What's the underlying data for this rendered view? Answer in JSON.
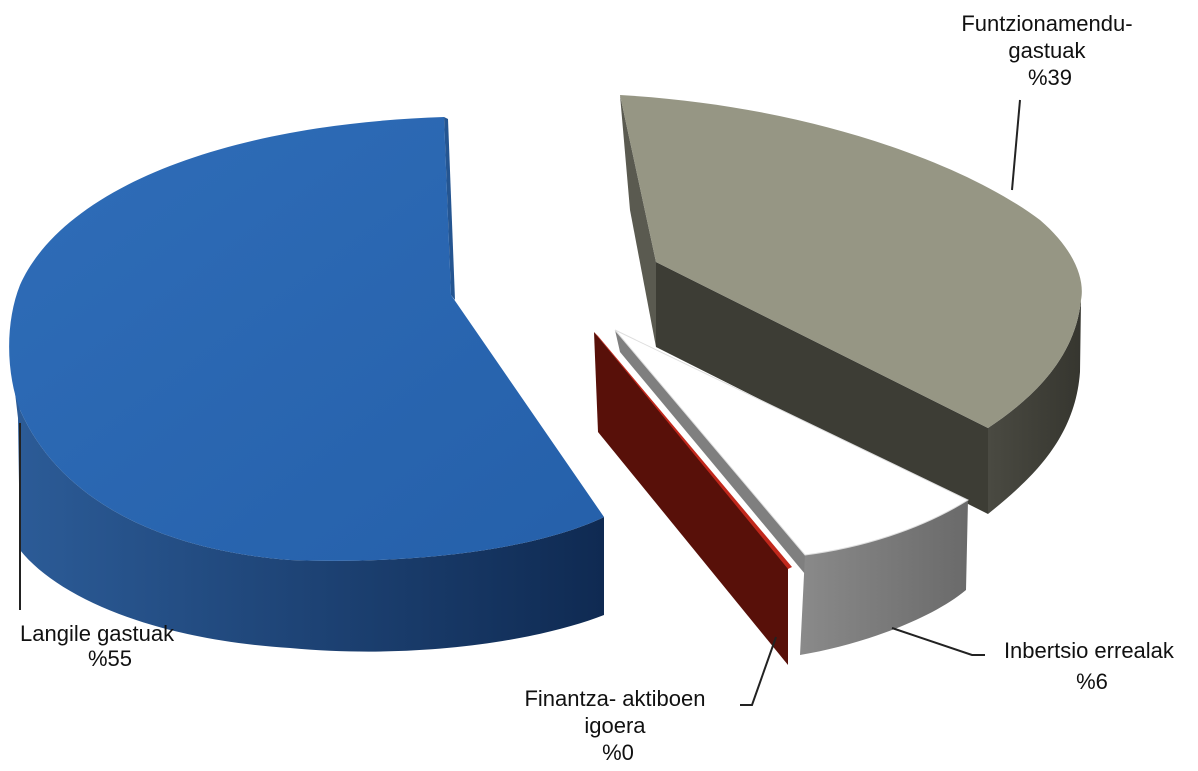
{
  "chart_data": {
    "type": "pie",
    "style": "3d-exploded",
    "categories": [
      "Langile gastuak",
      "Funtzionamendu-gastuak",
      "Inbertsio errealak",
      "Finantza- aktiboen igoera"
    ],
    "values": [
      55,
      39,
      6,
      0
    ],
    "colors": [
      "#2a63ad",
      "#92917f",
      "#ffffff",
      "#c1281c"
    ],
    "labels": [
      {
        "lines": [
          "Langile gastuak",
          "%55"
        ]
      },
      {
        "lines": [
          "Funtzionamendu-",
          "gastuak",
          "%39"
        ]
      },
      {
        "lines": [
          "Inbertsio errealak",
          "%6"
        ]
      },
      {
        "lines": [
          "Finantza- aktiboen",
          "igoera",
          "%0"
        ]
      }
    ]
  }
}
